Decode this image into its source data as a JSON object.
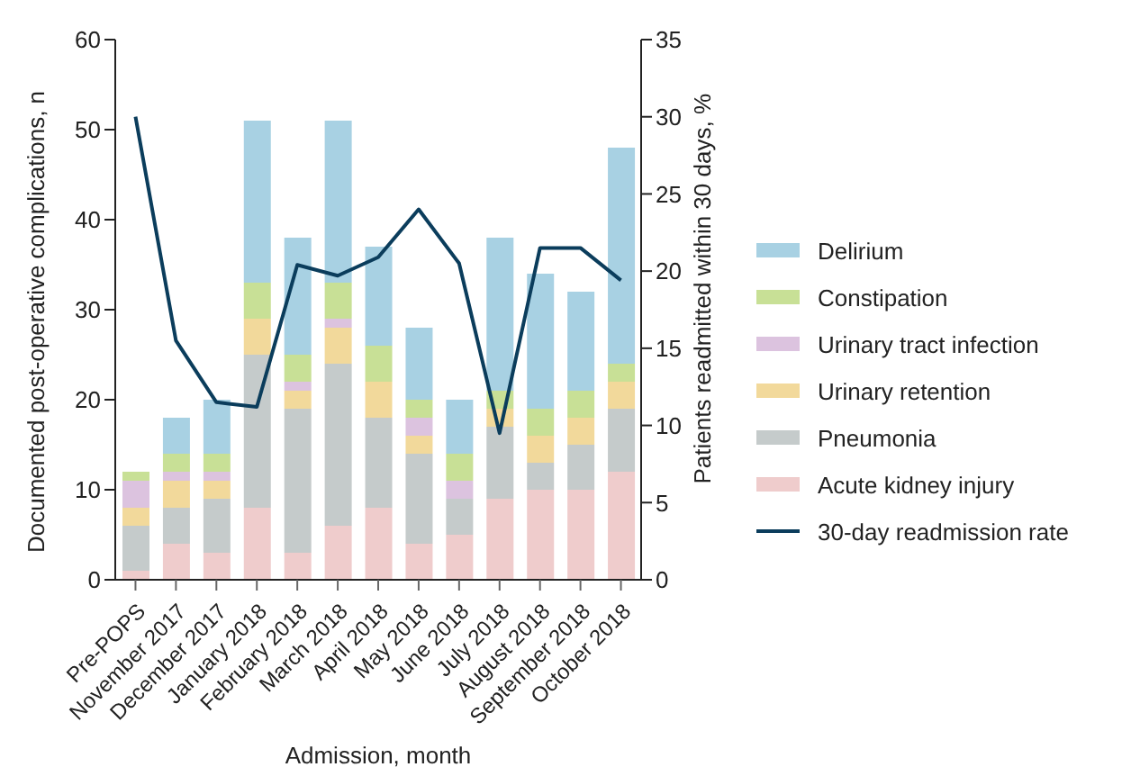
{
  "chart_data": {
    "type": "bar",
    "stacked": true,
    "xlabel": "Admission, month",
    "ylabel": "Documented post-operative complications, n",
    "y2label": "Patients readmitted within 30 days, %",
    "categories": [
      "Pre-POPS",
      "November 2017",
      "December 2017",
      "January 2018",
      "February 2018",
      "March 2018",
      "April 2018",
      "May 2018",
      "June 2018",
      "July 2018",
      "August 2018",
      "September 2018",
      "October 2018"
    ],
    "series": [
      {
        "name": "Acute kidney injury",
        "color": "#efcccc",
        "values": [
          1,
          4,
          3,
          8,
          3,
          6,
          8,
          4,
          5,
          9,
          10,
          10,
          12
        ]
      },
      {
        "name": "Pneumonia",
        "color": "#c5cbcb",
        "values": [
          5,
          4,
          6,
          17,
          16,
          18,
          10,
          10,
          4,
          8,
          3,
          5,
          7
        ]
      },
      {
        "name": "Urinary retention",
        "color": "#f2d99b",
        "values": [
          2,
          3,
          2,
          4,
          2,
          4,
          4,
          2,
          0,
          2,
          3,
          3,
          3
        ]
      },
      {
        "name": "Urinary tract infection",
        "color": "#dcc3df",
        "values": [
          3,
          1,
          1,
          0,
          1,
          1,
          0,
          2,
          2,
          0,
          0,
          0,
          0
        ]
      },
      {
        "name": "Constipation",
        "color": "#c8e096",
        "values": [
          1,
          2,
          2,
          4,
          3,
          4,
          4,
          2,
          3,
          2,
          3,
          3,
          2
        ]
      },
      {
        "name": "Delirium",
        "color": "#a8d1e3",
        "values": [
          0,
          4,
          6,
          18,
          13,
          18,
          11,
          8,
          6,
          17,
          15,
          11,
          24
        ]
      },
      {
        "name": "30-day readmission rate",
        "type": "line",
        "axis": "y2",
        "color": "#0b3d5c",
        "values": [
          30,
          15.5,
          11.5,
          11.2,
          20.4,
          19.7,
          20.9,
          24,
          20.5,
          9.5,
          21.5,
          21.5,
          19.4
        ]
      }
    ],
    "ylim": [
      0,
      60
    ],
    "yticks": [
      0,
      10,
      20,
      30,
      40,
      50,
      60
    ],
    "y2lim": [
      0,
      35
    ],
    "y2ticks": [
      0,
      5,
      10,
      15,
      20,
      25,
      30,
      35
    ],
    "legend": "right",
    "grid": false,
    "marker": "none",
    "line_style": "solid"
  }
}
